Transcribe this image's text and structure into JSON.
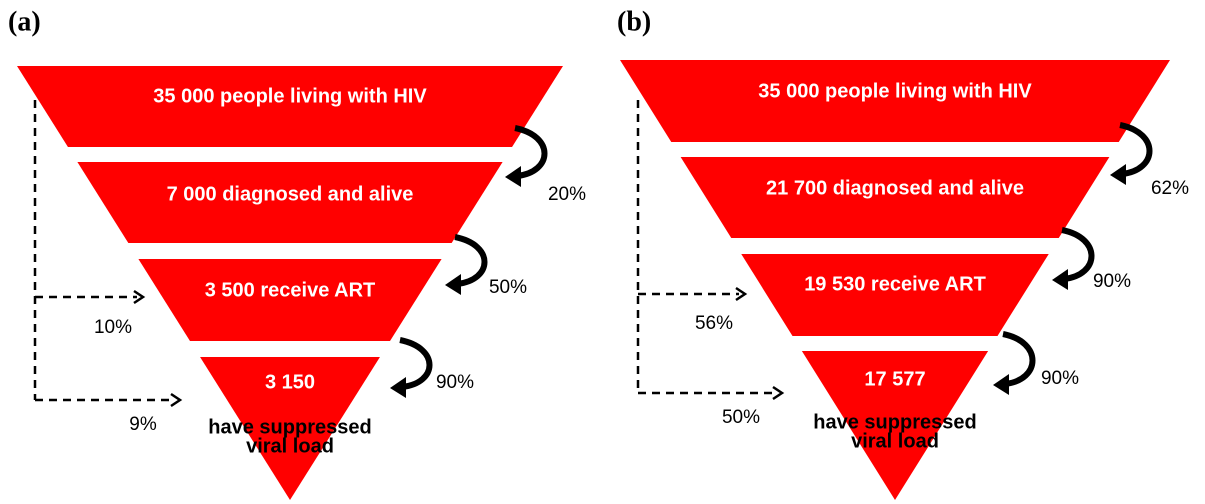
{
  "panels": [
    {
      "label": "(a)",
      "stages": [
        "35 000 people living with HIV",
        "7 000 diagnosed and alive",
        "3 500 receive ART",
        "3 150"
      ],
      "final_note": [
        "have suppressed",
        "viral load"
      ],
      "step_percents": [
        "20%",
        "50%",
        "90%"
      ],
      "overall_percents": [
        "10%",
        "9%"
      ]
    },
    {
      "label": "(b)",
      "stages": [
        "35 000 people living with HIV",
        "21 700 diagnosed and alive",
        "19 530 receive ART",
        "17 577"
      ],
      "final_note": [
        "have suppressed",
        "viral load"
      ],
      "step_percents": [
        "62%",
        "90%",
        "90%"
      ],
      "overall_percents": [
        "56%",
        "50%"
      ]
    }
  ]
}
